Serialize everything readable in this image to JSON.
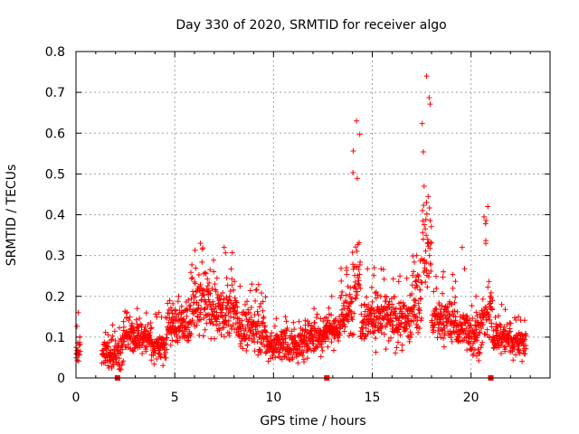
{
  "chart_data": {
    "type": "scatter",
    "title": "Day 330 of 2020, SRMTID for receiver algo",
    "xlabel": "GPS time / hours",
    "ylabel": "SRMTID / TECUs",
    "xlim": [
      0,
      24
    ],
    "ylim": [
      0,
      0.8
    ],
    "x_ticks": [
      "0",
      "5",
      "10",
      "15",
      "20"
    ],
    "y_ticks": [
      "0",
      "0.1",
      "0.2",
      "0.3",
      "0.4",
      "0.5",
      "0.6",
      "0.7",
      "0.8"
    ],
    "grid": true,
    "marker": "plus",
    "color": "#ff0000",
    "series": [
      {
        "name": "SRMTID",
        "segments": [
          [
            0.0,
            0.22,
            0.07,
            0.05,
            0.16,
            0.04
          ],
          [
            1.3,
            2.4,
            0.06,
            0.04,
            0.13,
            0.02
          ],
          [
            2.4,
            3.8,
            0.1,
            0.04,
            0.17,
            0.03
          ],
          [
            3.8,
            4.6,
            0.08,
            0.04,
            0.16,
            0.03
          ],
          [
            4.6,
            5.8,
            0.13,
            0.05,
            0.2,
            0.04
          ],
          [
            5.8,
            6.8,
            0.18,
            0.07,
            0.33,
            0.06
          ],
          [
            6.8,
            8.2,
            0.16,
            0.06,
            0.32,
            0.05
          ],
          [
            8.2,
            9.6,
            0.12,
            0.05,
            0.23,
            0.05
          ],
          [
            9.6,
            11.6,
            0.08,
            0.04,
            0.15,
            0.02
          ],
          [
            11.6,
            12.5,
            0.1,
            0.04,
            0.17,
            0.03
          ],
          [
            12.5,
            13.4,
            0.12,
            0.04,
            0.2,
            0.05
          ],
          [
            13.4,
            14.0,
            0.16,
            0.06,
            0.27,
            0.06
          ],
          [
            14.0,
            14.4,
            0.26,
            0.1,
            0.63,
            0.1
          ],
          [
            14.4,
            15.8,
            0.15,
            0.06,
            0.27,
            0.05
          ],
          [
            15.8,
            17.0,
            0.14,
            0.06,
            0.25,
            0.05
          ],
          [
            17.0,
            17.5,
            0.19,
            0.07,
            0.3,
            0.07
          ],
          [
            17.5,
            18.0,
            0.32,
            0.13,
            0.74,
            0.1
          ],
          [
            18.0,
            19.2,
            0.14,
            0.05,
            0.26,
            0.05
          ],
          [
            19.2,
            19.9,
            0.12,
            0.05,
            0.32,
            0.05
          ],
          [
            19.9,
            20.6,
            0.11,
            0.05,
            0.2,
            0.04
          ],
          [
            20.6,
            21.1,
            0.15,
            0.07,
            0.42,
            0.05
          ],
          [
            21.1,
            22.0,
            0.1,
            0.04,
            0.18,
            0.03
          ],
          [
            22.0,
            22.8,
            0.09,
            0.04,
            0.15,
            0.02
          ]
        ],
        "gap_markers_x": [
          2.1,
          12.7,
          21.0
        ],
        "gap_markers_y": 0
      }
    ]
  }
}
